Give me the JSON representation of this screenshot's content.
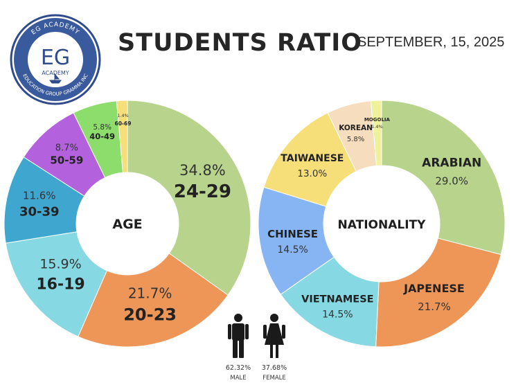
{
  "header": {
    "title": "STUDENTS RATIO",
    "date": "SEPTEMBER, 15, 2025"
  },
  "logo": {
    "letters": "EG",
    "arc_top": "EG ACADEMY",
    "middle": "ACADEMY",
    "arc_bottom": "EDUCATION GROUP GRAMMA INC"
  },
  "colors": {
    "green": "#b8d48c",
    "orange": "#ee9657",
    "cyan": "#86d8e3",
    "blue": "#3fa6cf",
    "purple": "#b361dd",
    "lightgreen": "#8cdd6c",
    "yellow": "#f6de78",
    "skyblue": "#87b5f3",
    "peach": "#f6ddbe",
    "paleyellow": "#eef29a",
    "logo_blue": "#2f4b8c"
  },
  "chart_data": [
    {
      "type": "pie",
      "title": "",
      "center_label": "AGE",
      "slices": [
        {
          "label": "24-29",
          "pct_label": "34.8%",
          "value": 34.8,
          "color": "#b8d48c"
        },
        {
          "label": "20-23",
          "pct_label": "21.7%",
          "value": 21.7,
          "color": "#ee9657"
        },
        {
          "label": "16-19",
          "pct_label": "15.9%",
          "value": 15.9,
          "color": "#86d8e3"
        },
        {
          "label": "30-39",
          "pct_label": "11.6%",
          "value": 11.6,
          "color": "#3fa6cf"
        },
        {
          "label": "50-59",
          "pct_label": "8.7%",
          "value": 8.7,
          "color": "#b361dd"
        },
        {
          "label": "40-49",
          "pct_label": "5.8%",
          "value": 5.8,
          "color": "#8cdd6c"
        },
        {
          "label": "60-69",
          "pct_label": "1.4%",
          "value": 1.4,
          "color": "#f6de78"
        }
      ]
    },
    {
      "type": "pie",
      "title": "",
      "center_label": "NATIONALITY",
      "slices": [
        {
          "label": "ARABIAN",
          "pct_label": "29.0%",
          "value": 29.0,
          "color": "#b8d48c"
        },
        {
          "label": "JAPENESE",
          "pct_label": "21.7%",
          "value": 21.7,
          "color": "#ee9657"
        },
        {
          "label": "VIETNAMESE",
          "pct_label": "14.5%",
          "value": 14.5,
          "color": "#86d8e3"
        },
        {
          "label": "CHINESE",
          "pct_label": "14.5%",
          "value": 14.5,
          "color": "#87b5f3"
        },
        {
          "label": "TAIWANESE",
          "pct_label": "13.0%",
          "value": 13.0,
          "color": "#f6de78"
        },
        {
          "label": "KOREAN",
          "pct_label": "5.8%",
          "value": 5.8,
          "color": "#f6ddbe"
        },
        {
          "label": "MOGOLIA",
          "pct_label": "1.4%",
          "value": 1.4,
          "color": "#eef29a"
        }
      ]
    }
  ],
  "gender": [
    {
      "pct": "62.32%",
      "label": "MALE",
      "value": 62.32,
      "icon": "male-figure"
    },
    {
      "pct": "37.68%",
      "label": "FEMALE",
      "value": 37.68,
      "icon": "female-figure"
    }
  ]
}
